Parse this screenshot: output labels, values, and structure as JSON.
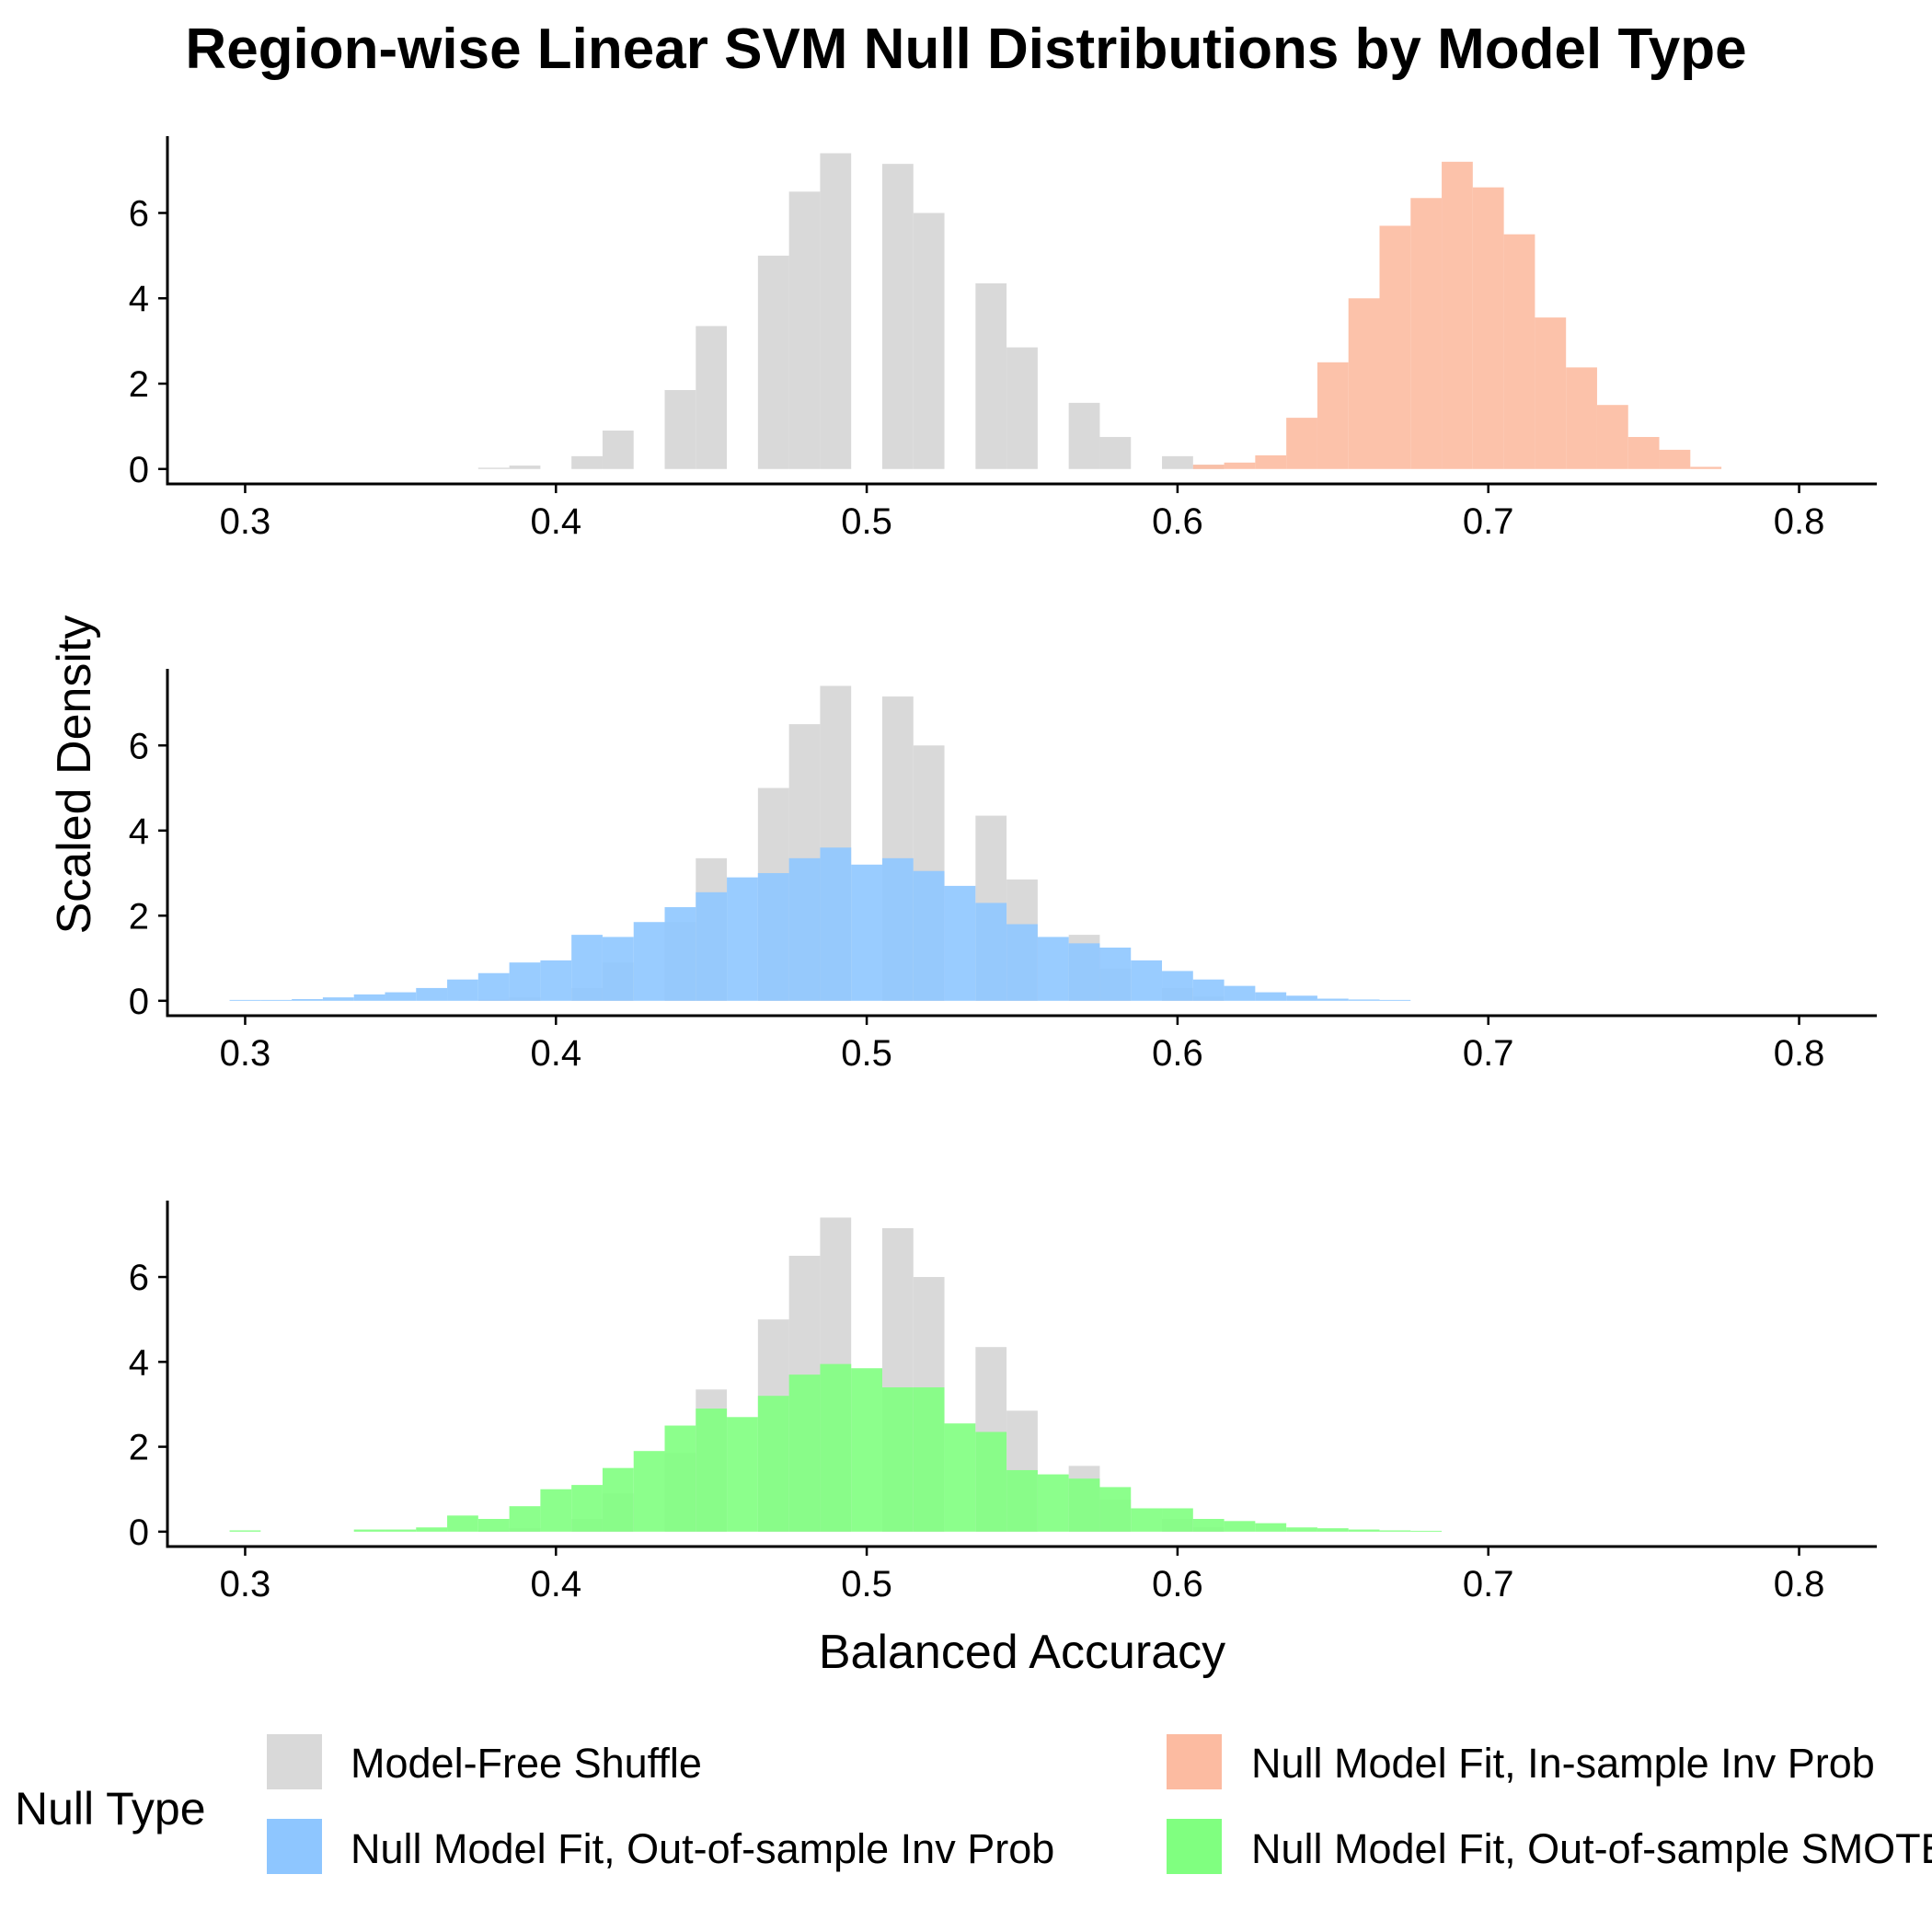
{
  "chart_data": {
    "type": "bar",
    "title": "Region-wise Linear SVM Null Distributions by Model Type",
    "xlabel": "Balanced Accuracy",
    "ylabel": "Scaled Density",
    "xlim": [
      0.275,
      0.825
    ],
    "ylim": [
      -0.35,
      7.8
    ],
    "x_ticks": [
      0.3,
      0.4,
      0.5,
      0.6,
      0.7,
      0.8
    ],
    "y_ticks": [
      0,
      2,
      4,
      6
    ],
    "bin_width": 0.01,
    "grid": false,
    "legend": {
      "title": "Null Type",
      "position": "bottom",
      "entries": [
        {
          "name": "Model-Free Shuffle",
          "color": "#d9d9d9"
        },
        {
          "name": "Null Model Fit, In-sample Inv Prob",
          "color": "#fcbba1"
        },
        {
          "name": "Null Model Fit, Out-of-sample Inv Prob",
          "color": "#8ec6ff"
        },
        {
          "name": "Null Model Fit, Out-of-sample SMOTE",
          "color": "#80ff80"
        }
      ]
    },
    "reference": {
      "name": "Model-Free Shuffle",
      "color": "#d9d9d9",
      "x": [
        0.38,
        0.39,
        0.41,
        0.42,
        0.44,
        0.45,
        0.47,
        0.48,
        0.49,
        0.51,
        0.52,
        0.54,
        0.55,
        0.57,
        0.58,
        0.6,
        0.61
      ],
      "values": [
        0.03,
        0.08,
        0.3,
        0.9,
        1.85,
        3.35,
        5.0,
        6.5,
        7.4,
        7.15,
        6.0,
        4.35,
        2.85,
        1.55,
        0.75,
        0.3,
        0.1
      ]
    },
    "panels": [
      {
        "series": {
          "name": "Null Model Fit, In-sample Inv Prob",
          "color": "#fcbba1",
          "x": [
            0.61,
            0.62,
            0.63,
            0.64,
            0.65,
            0.66,
            0.67,
            0.68,
            0.69,
            0.7,
            0.71,
            0.72,
            0.73,
            0.74,
            0.75,
            0.76,
            0.77
          ],
          "values": [
            0.1,
            0.15,
            0.32,
            1.2,
            2.5,
            4.0,
            5.7,
            6.35,
            7.2,
            6.6,
            5.5,
            3.55,
            2.38,
            1.5,
            0.75,
            0.45,
            0.05
          ]
        }
      },
      {
        "series": {
          "name": "Null Model Fit, Out-of-sample Inv Prob",
          "color": "#8ec6ff",
          "x": [
            0.3,
            0.31,
            0.32,
            0.33,
            0.34,
            0.35,
            0.36,
            0.37,
            0.38,
            0.39,
            0.4,
            0.41,
            0.42,
            0.43,
            0.44,
            0.45,
            0.46,
            0.47,
            0.48,
            0.49,
            0.5,
            0.51,
            0.52,
            0.53,
            0.54,
            0.55,
            0.56,
            0.57,
            0.58,
            0.59,
            0.6,
            0.61,
            0.62,
            0.63,
            0.64,
            0.65,
            0.66,
            0.67
          ],
          "values": [
            0.02,
            0.02,
            0.04,
            0.08,
            0.15,
            0.2,
            0.3,
            0.5,
            0.65,
            0.9,
            0.95,
            1.55,
            1.5,
            1.85,
            2.2,
            2.55,
            2.9,
            3.0,
            3.35,
            3.6,
            3.2,
            3.35,
            3.05,
            2.7,
            2.3,
            1.8,
            1.5,
            1.35,
            1.25,
            0.95,
            0.7,
            0.5,
            0.35,
            0.2,
            0.12,
            0.05,
            0.03,
            0.02
          ]
        }
      },
      {
        "series": {
          "name": "Null Model Fit, Out-of-sample SMOTE",
          "color": "#80ff80",
          "x": [
            0.3,
            0.34,
            0.35,
            0.36,
            0.37,
            0.38,
            0.39,
            0.4,
            0.41,
            0.42,
            0.43,
            0.44,
            0.45,
            0.46,
            0.47,
            0.48,
            0.49,
            0.5,
            0.51,
            0.52,
            0.53,
            0.54,
            0.55,
            0.56,
            0.57,
            0.58,
            0.59,
            0.6,
            0.61,
            0.62,
            0.63,
            0.64,
            0.65,
            0.66,
            0.67,
            0.68
          ],
          "values": [
            0.03,
            0.05,
            0.05,
            0.1,
            0.38,
            0.3,
            0.6,
            1.0,
            1.1,
            1.5,
            1.9,
            2.5,
            2.9,
            2.7,
            3.2,
            3.7,
            3.95,
            3.85,
            3.4,
            3.4,
            2.55,
            2.35,
            1.45,
            1.35,
            1.25,
            1.05,
            0.55,
            0.55,
            0.3,
            0.25,
            0.2,
            0.1,
            0.08,
            0.05,
            0.03,
            0.02
          ]
        }
      }
    ]
  }
}
